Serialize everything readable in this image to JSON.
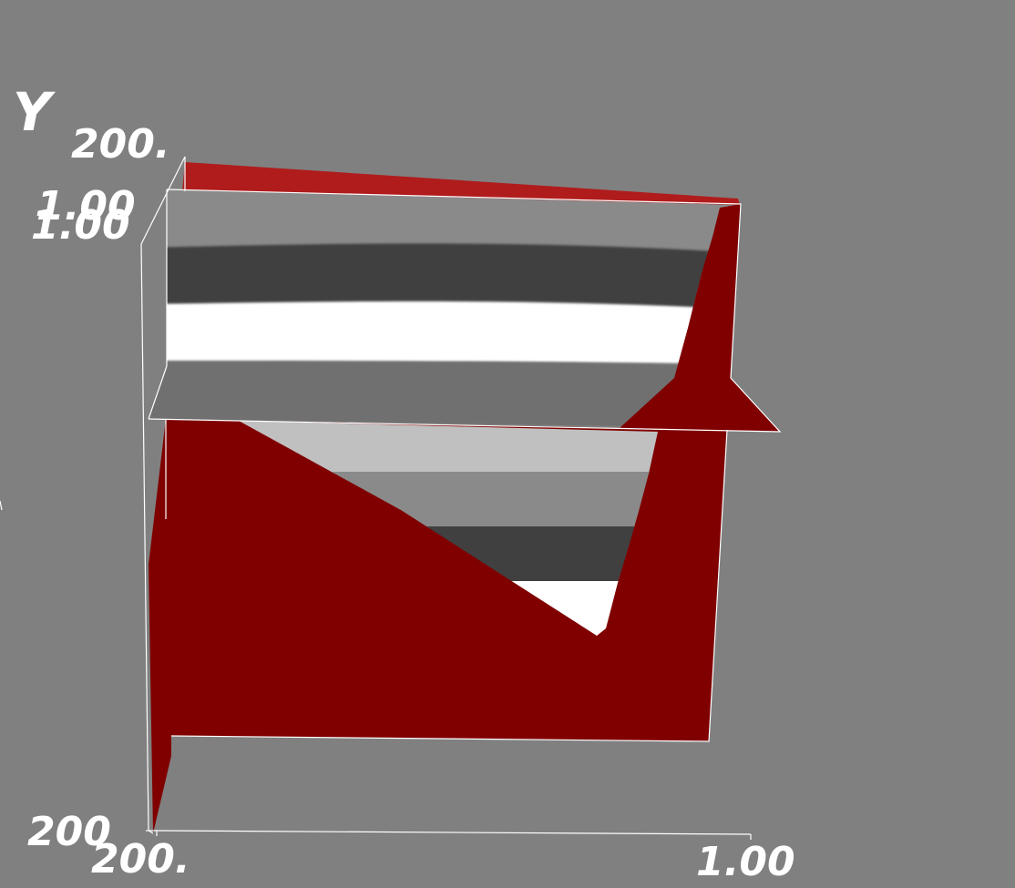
{
  "scene": {
    "background_color": "#808080",
    "volume_color": "#800000",
    "axis_color": "#ffffff"
  },
  "axes": {
    "y_title": "Y",
    "labels": {
      "top_left_200": "200.",
      "top_left_100_a": "1.00",
      "top_left_100_b": "1.00",
      "bottom_left_200_a": "200",
      "bottom_left_200_b": "200.",
      "bottom_right_100": "1.00"
    }
  },
  "slice": {
    "band_colors": [
      "#8a8a8a",
      "#404040",
      "#ffffff",
      "#707070",
      "#c0c0c0"
    ]
  }
}
